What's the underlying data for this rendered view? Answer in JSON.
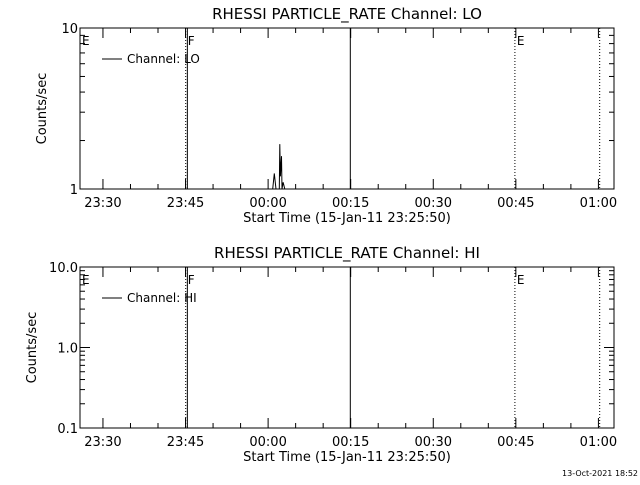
{
  "colors": {
    "background": "#ffffff",
    "foreground": "#000000"
  },
  "footer": {
    "timestamp": "13-Oct-2021 18:52"
  },
  "chart_data": [
    {
      "type": "line",
      "title": "RHESSI PARTICLE_RATE Channel: LO",
      "xlabel": "Start Time (15-Jan-11 23:25:50)",
      "ylabel": "Counts/sec",
      "yscale": "log",
      "xlim_minutes_after_start": [
        0,
        97
      ],
      "ylim": [
        1,
        10
      ],
      "x_tick_labels": [
        "23:30",
        "23:45",
        "00:00",
        "00:15",
        "00:30",
        "00:45",
        "01:00"
      ],
      "x_tick_minutes": [
        4.17,
        19.17,
        34.17,
        49.17,
        64.17,
        79.17,
        94.17
      ],
      "y_tick_labels": [
        "10",
        "1"
      ],
      "y_tick_values": [
        10,
        1
      ],
      "legend": {
        "label": "Channel: LO",
        "position": "top-left"
      },
      "markers": [
        {
          "label": "E",
          "minute": 0,
          "style": "none"
        },
        {
          "label": "F",
          "minute": 19.2,
          "style": "dotted"
        },
        {
          "label": "",
          "minute": 19.5,
          "style": "solid"
        },
        {
          "label": "",
          "minute": 49.1,
          "style": "solid"
        },
        {
          "label": "E",
          "minute": 79.0,
          "style": "dotted"
        },
        {
          "label": "",
          "minute": 94.4,
          "style": "dotted"
        }
      ],
      "series": [
        {
          "x": [
            34.2,
            35.0,
            35.3,
            35.6,
            36.2,
            36.3,
            36.4,
            36.6,
            36.7,
            36.9,
            37.2
          ],
          "y": [
            1,
            1,
            1.25,
            1,
            1,
            1.9,
            1.2,
            1.6,
            1,
            1.1,
            1
          ]
        }
      ]
    },
    {
      "type": "line",
      "title": "RHESSI PARTICLE_RATE Channel: HI",
      "xlabel": "Start Time (15-Jan-11 23:25:50)",
      "ylabel": "Counts/sec",
      "yscale": "log",
      "xlim_minutes_after_start": [
        0,
        97
      ],
      "ylim": [
        0.1,
        10
      ],
      "x_tick_labels": [
        "23:30",
        "23:45",
        "00:00",
        "00:15",
        "00:30",
        "00:45",
        "01:00"
      ],
      "x_tick_minutes": [
        4.17,
        19.17,
        34.17,
        49.17,
        64.17,
        79.17,
        94.17
      ],
      "y_tick_labels": [
        "10.0",
        "1.0",
        "0.1"
      ],
      "y_tick_values": [
        10,
        1,
        0.1
      ],
      "legend": {
        "label": "Channel: HI",
        "position": "top-left"
      },
      "markers": [
        {
          "label": "E",
          "minute": 0,
          "style": "none"
        },
        {
          "label": "F",
          "minute": 19.2,
          "style": "dotted"
        },
        {
          "label": "",
          "minute": 19.5,
          "style": "solid"
        },
        {
          "label": "",
          "minute": 49.1,
          "style": "solid"
        },
        {
          "label": "E",
          "minute": 79.0,
          "style": "dotted"
        },
        {
          "label": "",
          "minute": 94.4,
          "style": "dotted"
        }
      ],
      "series": [
        {
          "x": [],
          "y": []
        }
      ]
    }
  ]
}
